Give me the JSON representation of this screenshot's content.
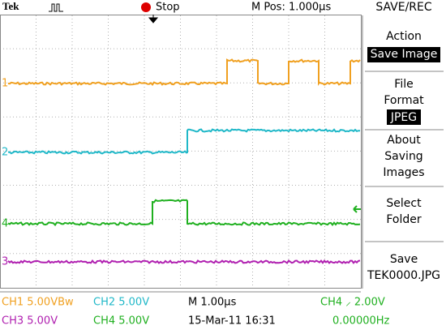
{
  "header": {
    "brand": "Tek",
    "run_state": "Stop",
    "position": "M Pos: 1.000µs"
  },
  "menu": {
    "title": "SAVE/REC",
    "items": [
      {
        "label": [
          "Action"
        ],
        "value": "Save Image"
      },
      {
        "label": [
          "File",
          "Format"
        ],
        "value": "JPEG"
      },
      {
        "label": [
          "About",
          "Saving",
          "Images"
        ]
      },
      {
        "label": [
          "Select",
          "Folder"
        ]
      },
      {
        "label": [
          "Save"
        ],
        "value": "TEK0000.JPG"
      }
    ]
  },
  "trace_markers": [
    "1",
    "2",
    "3",
    "4"
  ],
  "status": {
    "row1": [
      "CH1 5.00VBw",
      "CH2 5.00V",
      "M 1.00µs",
      "CH4 ⸝ 2.00V"
    ],
    "row2": [
      "CH3 5.00V",
      "CH4 5.00V",
      "15-Mar-11 16:31",
      "0.00000Hz"
    ]
  }
}
